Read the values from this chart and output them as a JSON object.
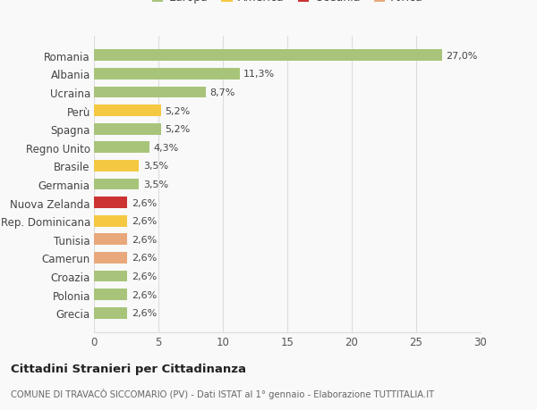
{
  "categories": [
    "Grecia",
    "Polonia",
    "Croazia",
    "Camerun",
    "Tunisia",
    "Rep. Dominicana",
    "Nuova Zelanda",
    "Germania",
    "Brasile",
    "Regno Unito",
    "Spagna",
    "Perù",
    "Ucraina",
    "Albania",
    "Romania"
  ],
  "values": [
    2.6,
    2.6,
    2.6,
    2.6,
    2.6,
    2.6,
    2.6,
    3.5,
    3.5,
    4.3,
    5.2,
    5.2,
    8.7,
    11.3,
    27.0
  ],
  "labels": [
    "2,6%",
    "2,6%",
    "2,6%",
    "2,6%",
    "2,6%",
    "2,6%",
    "2,6%",
    "3,5%",
    "3,5%",
    "4,3%",
    "5,2%",
    "5,2%",
    "8,7%",
    "11,3%",
    "27,0%"
  ],
  "colors": [
    "#a8c47a",
    "#a8c47a",
    "#a8c47a",
    "#e8a87c",
    "#e8a87c",
    "#f5c842",
    "#cc3333",
    "#a8c47a",
    "#f5c842",
    "#a8c47a",
    "#a8c47a",
    "#f5c842",
    "#a8c47a",
    "#a8c47a",
    "#a8c47a"
  ],
  "continent_colors": {
    "Europa": "#a8c47a",
    "America": "#f5c842",
    "Oceania": "#cc3333",
    "Africa": "#e8a87c"
  },
  "title1": "Cittadini Stranieri per Cittadinanza",
  "title2": "COMUNE DI TRAVACÒ SICCOMARIO (PV) - Dati ISTAT al 1° gennaio - Elaborazione TUTTITALIA.IT",
  "xlim": [
    0,
    30
  ],
  "xticks": [
    0,
    5,
    10,
    15,
    20,
    25,
    30
  ],
  "background_color": "#f9f9f9",
  "bar_height": 0.62,
  "grid_color": "#dddddd"
}
